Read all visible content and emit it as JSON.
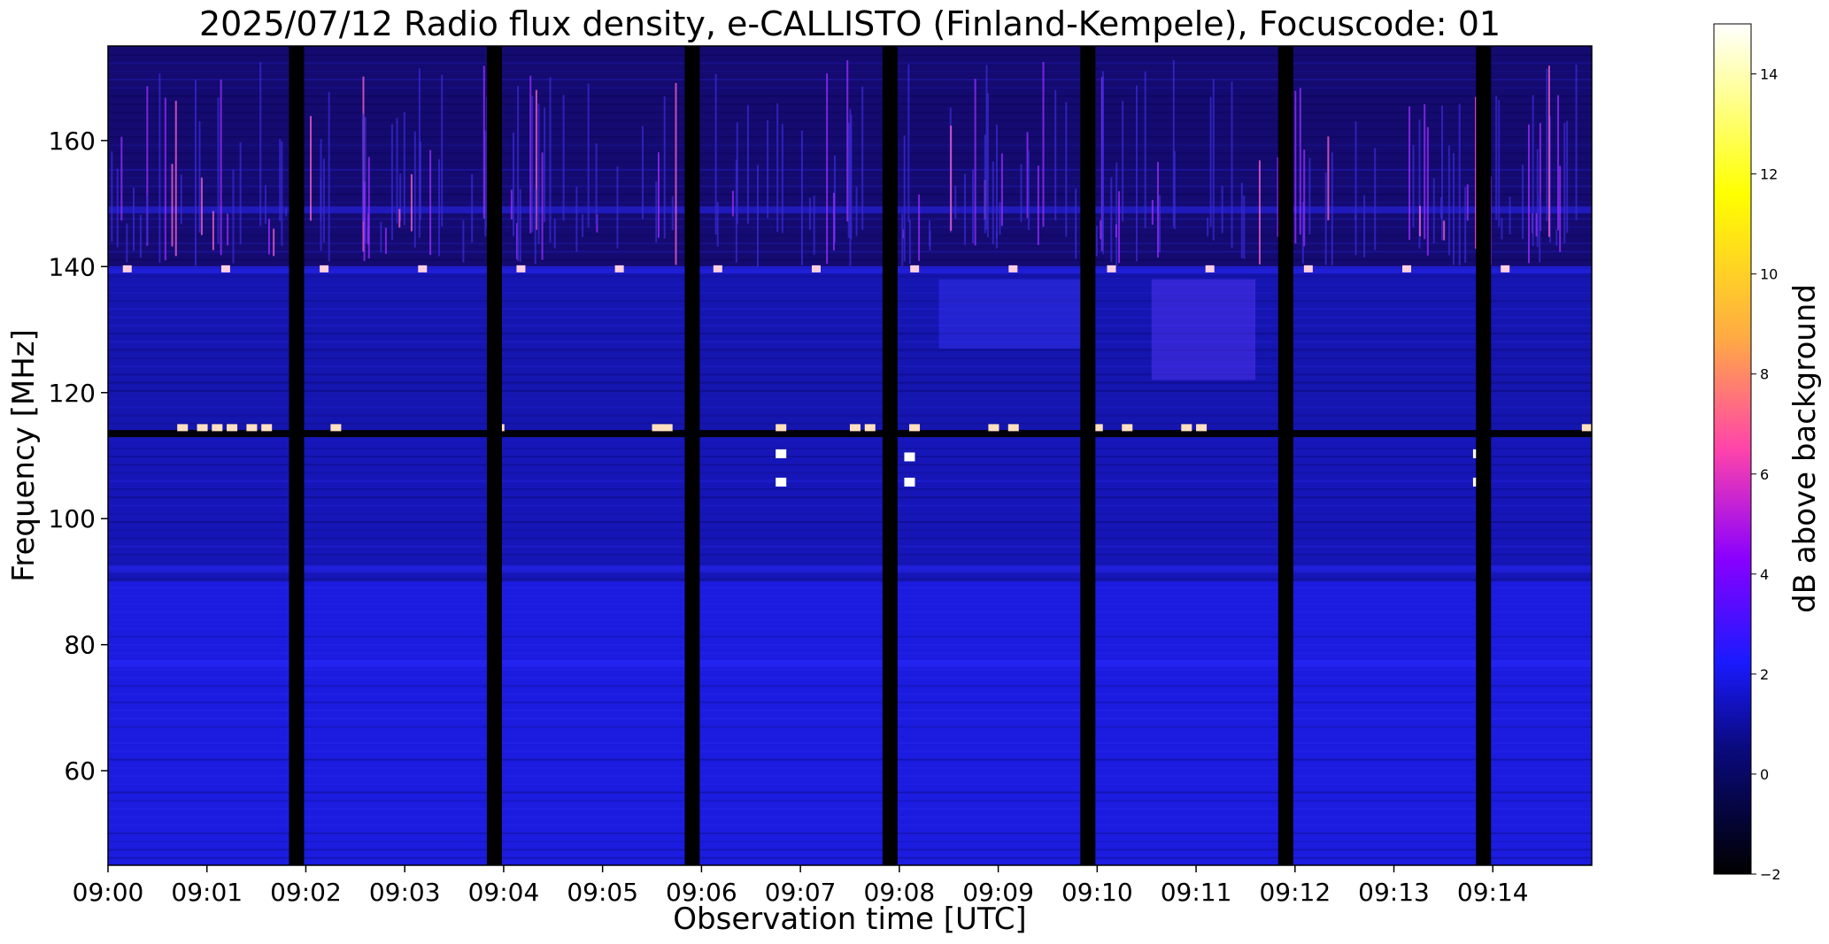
{
  "chart_data": {
    "type": "heatmap",
    "title": "2025/07/12  Radio flux density, e-CALLISTO (Finland-Kempele), Focuscode: 01",
    "xlabel": "Observation time [UTC]",
    "ylabel": "Frequency [MHz]",
    "colorbar_label": "dB above background",
    "x_tick_labels": [
      "09:00",
      "09:01",
      "09:02",
      "09:03",
      "09:04",
      "09:05",
      "09:06",
      "09:07",
      "09:08",
      "09:09",
      "09:10",
      "09:11",
      "09:12",
      "09:13",
      "09:14"
    ],
    "y_ticks": [
      60,
      80,
      100,
      120,
      140,
      160
    ],
    "ylim": [
      45,
      175
    ],
    "xlim_minutes": [
      0,
      15
    ],
    "colorbar_ticks": [
      -2,
      0,
      2,
      4,
      6,
      8,
      10,
      12,
      14
    ],
    "colorbar_range": [
      -2,
      15
    ],
    "colormap": "gnuplot2",
    "colormap_stops": [
      "#000000",
      "#1a1aff",
      "#8800ff",
      "#ff44aa",
      "#ffaa44",
      "#ffff00",
      "#ffffff"
    ],
    "background_level_db": 1.5,
    "gap_minutes": [
      1.83,
      3.83,
      5.83,
      7.83,
      9.83,
      11.83,
      13.83
    ],
    "interference_bands_mhz": [
      113.5,
      139.5,
      149,
      92,
      77
    ]
  }
}
